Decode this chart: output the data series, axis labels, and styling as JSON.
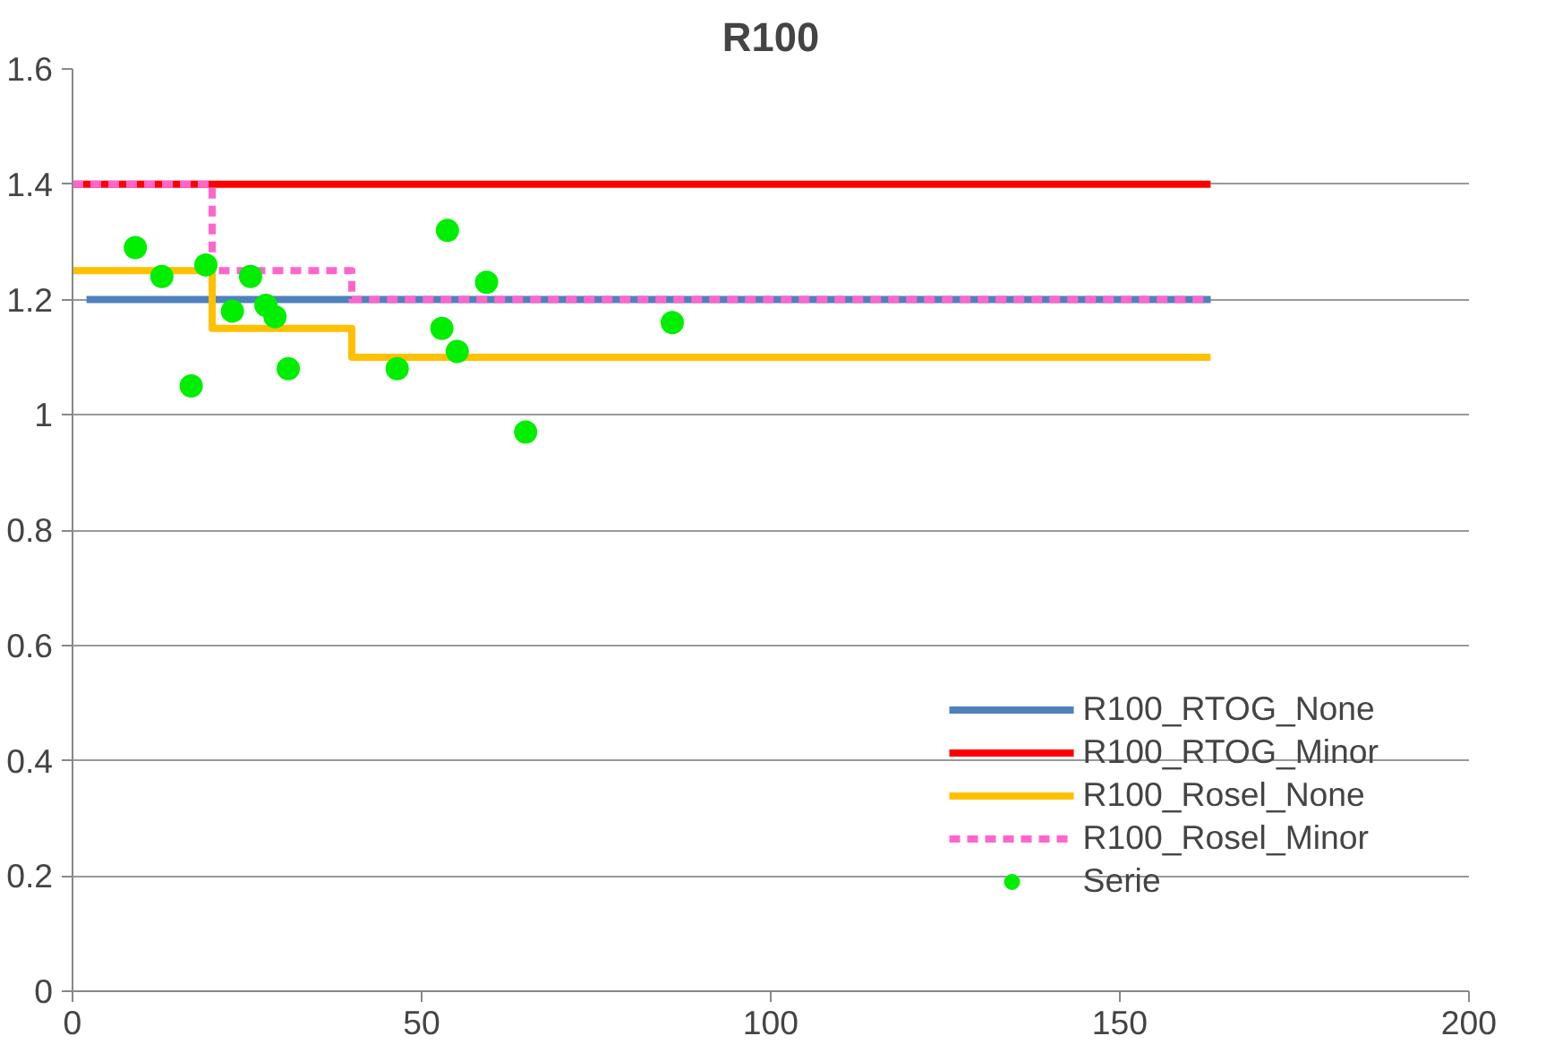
{
  "chart_data": {
    "type": "line",
    "title": "R100",
    "xlim": [
      0,
      200
    ],
    "xticks": [
      0,
      50,
      100,
      150,
      200
    ],
    "ylim": [
      0,
      1.6
    ],
    "yticks": [
      0,
      {
        "value": 0.2,
        "label": "0.2"
      },
      {
        "value": 0.4,
        "label": "0.4"
      },
      {
        "value": 0.6,
        "label": "0.6"
      },
      {
        "value": 0.8,
        "label": "0.8"
      },
      1,
      {
        "value": 1.2,
        "label": "1.2"
      },
      {
        "value": 1.4,
        "label": "1.4"
      },
      {
        "value": 1.6,
        "label": "1.6"
      }
    ],
    "grid": "y",
    "legend": "bottom right",
    "series": [
      {
        "name": "R100_RTOG_None",
        "color": "#4f81bd",
        "x": [
          2,
          163
        ],
        "values": [
          1.2,
          1.2
        ],
        "line_style": "solid"
      },
      {
        "name": "R100_RTOG_Minor",
        "color": "#ff0000",
        "x": [
          0,
          163
        ],
        "values": [
          1.4,
          1.4
        ],
        "line_style": "solid"
      },
      {
        "name": "R100_Rosel_None",
        "type": "step",
        "color": "#ffc000",
        "x": [
          0,
          20,
          40,
          163
        ],
        "values": [
          1.25,
          1.15,
          1.1,
          1.1
        ],
        "line_style": "solid"
      },
      {
        "name": "R100_Rosel_Minor",
        "type": "step",
        "color": "#ff66cc",
        "x": [
          0,
          20,
          40,
          163
        ],
        "values": [
          1.4,
          1.25,
          1.2,
          1.2
        ],
        "line_style": "dashed"
      },
      {
        "name": "Serie",
        "type": "scatter",
        "color": "#00ee00",
        "marker": "circle",
        "x": [
          9.0,
          12.8,
          17.0,
          19.1,
          22.9,
          25.5,
          27.7,
          29.0,
          30.9,
          46.5,
          52.9,
          53.7,
          55.1,
          59.3,
          64.9,
          85.9
        ],
        "values": [
          1.29,
          1.24,
          1.05,
          1.26,
          1.18,
          1.24,
          1.19,
          1.17,
          1.08,
          1.08,
          1.15,
          1.32,
          1.11,
          1.23,
          0.97,
          1.16
        ]
      }
    ]
  }
}
